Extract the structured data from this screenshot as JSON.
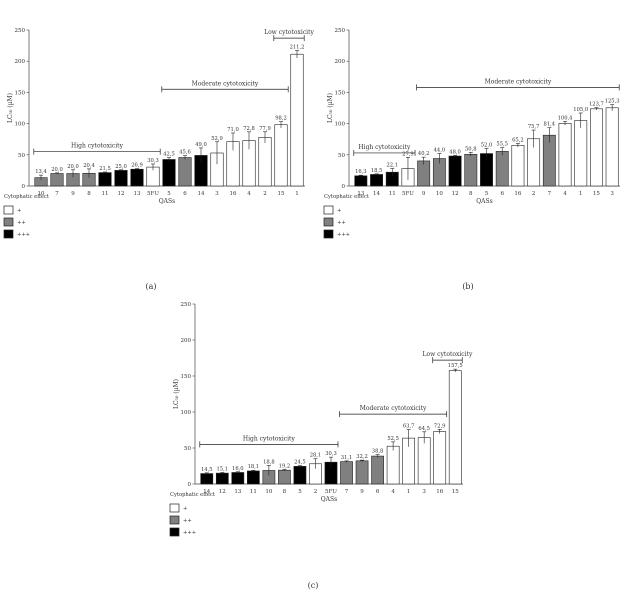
{
  "legend_colors": {
    "+": "#ffffff",
    "++": "#808080",
    "+++": "#000000"
  },
  "chart_data": [
    {
      "type": "bar",
      "panel_label": "(a)",
      "ylabel": "LC₅₀ (µM)",
      "xlabel": "QASs",
      "ylim": [
        0,
        250
      ],
      "yticks": [
        0,
        50,
        100,
        150,
        200,
        250
      ],
      "grid": false,
      "legend": {
        "title": "Cytophatic effect",
        "entries": [
          "+",
          "++",
          "+++"
        ],
        "placement": "below"
      },
      "categories": [
        "10",
        "7",
        "9",
        "8",
        "11",
        "12",
        "13",
        "5FU",
        "5",
        "6",
        "14",
        "3",
        "16",
        "4",
        "2",
        "15",
        "1"
      ],
      "values": [
        13.4,
        20.0,
        20.0,
        20.4,
        21.5,
        25.0,
        26.9,
        30.3,
        42.5,
        45.6,
        49.0,
        52.9,
        71.0,
        72.8,
        77.9,
        98.2,
        211.2
      ],
      "value_labels": [
        "13,4",
        "20,0",
        "20,0",
        "20,4",
        "21,5",
        "25,0",
        "26,9",
        "30,3",
        "42,5",
        "45,6",
        "49,0",
        "52,9",
        "71,0",
        "72,8",
        "77,9",
        "98,2",
        "211,2"
      ],
      "errors": [
        4,
        1,
        6,
        7,
        1,
        1,
        1,
        5,
        3,
        3,
        12,
        18,
        14,
        14,
        9,
        5,
        6
      ],
      "effect": [
        "++",
        "++",
        "++",
        "++",
        "+++",
        "+++",
        "+++",
        "+",
        "+++",
        "++",
        "+++",
        "+",
        "+",
        "+",
        "+",
        "+",
        "+"
      ],
      "annotations": [
        {
          "text": "High cytotoxicity",
          "from": 0,
          "to": 7,
          "y": 55
        },
        {
          "text": "Moderate cytotoxicity",
          "from": 8,
          "to": 15,
          "y": 155
        },
        {
          "text": "Low cytotoxicity",
          "from": 15,
          "to": 16,
          "y": 237
        }
      ]
    },
    {
      "type": "bar",
      "panel_label": "(b)",
      "ylabel": "LC₅₀ (µM)",
      "xlabel": "QASs",
      "ylim": [
        0,
        250
      ],
      "yticks": [
        0,
        50,
        100,
        150,
        200,
        250
      ],
      "grid": false,
      "legend": {
        "title": "Cytophatic effect",
        "entries": [
          "+",
          "++",
          "+++"
        ],
        "placement": "below"
      },
      "categories": [
        "13",
        "14",
        "11",
        "5FU",
        "9",
        "10",
        "12",
        "8",
        "5",
        "6",
        "16",
        "2",
        "7",
        "4",
        "1",
        "15",
        "3"
      ],
      "values": [
        16.3,
        18.5,
        22.1,
        27.9,
        40.2,
        44.0,
        48.0,
        50.8,
        52.0,
        55.5,
        65.2,
        75.7,
        81.4,
        100.4,
        105.0,
        123.7,
        125.3
      ],
      "value_labels": [
        "16,3",
        "18,5",
        "22,1",
        "27,9",
        "40,2",
        "44,0",
        "48,0",
        "50,8",
        "52,0",
        "55,5",
        "65,2",
        "75,7",
        "81,4",
        "100,4",
        "105,0",
        "123,7",
        "125,3"
      ],
      "errors": [
        1,
        1,
        6,
        18,
        6,
        8,
        1,
        3,
        8,
        6,
        3,
        14,
        12,
        3,
        12,
        2,
        5
      ],
      "effect": [
        "+++",
        "+++",
        "+++",
        "+",
        "++",
        "++",
        "+++",
        "++",
        "+++",
        "++",
        "+",
        "+",
        "++",
        "+",
        "+",
        "+",
        "+"
      ],
      "annotations": [
        {
          "text": "High cytotoxicity",
          "from": 0,
          "to": 3,
          "y": 53
        },
        {
          "text": "Moderate cytotoxicity",
          "from": 4,
          "to": 16,
          "y": 158
        }
      ]
    },
    {
      "type": "bar",
      "panel_label": "(c)",
      "ylabel": "LC₅₀ (µM)",
      "xlabel": "QASs",
      "ylim": [
        0,
        250
      ],
      "yticks": [
        0,
        50,
        100,
        150,
        200,
        250
      ],
      "grid": false,
      "legend": {
        "title": "Cytophatic effect",
        "entries": [
          "+",
          "++",
          "+++"
        ],
        "placement": "below"
      },
      "categories": [
        "14",
        "12",
        "13",
        "11",
        "10",
        "8",
        "5",
        "2",
        "5FU",
        "7",
        "9",
        "6",
        "4",
        "1",
        "3",
        "16",
        "15"
      ],
      "values": [
        14.5,
        15.1,
        16.0,
        18.1,
        18.8,
        19.2,
        24.5,
        28.1,
        30.3,
        31.1,
        32.2,
        38.8,
        52.5,
        63.7,
        64.5,
        72.9,
        157.5
      ],
      "value_labels": [
        "14,5",
        "15,1",
        "16,0",
        "18,1",
        "18,8",
        "19,2",
        "24,5",
        "28,1",
        "30,3",
        "31,1",
        "32,2",
        "38,8",
        "52,5",
        "63,7",
        "64,5",
        "72,9",
        "157,5"
      ],
      "errors": [
        1,
        1,
        1,
        1,
        7,
        1,
        1,
        7,
        7,
        1,
        1,
        2,
        6,
        12,
        8,
        3,
        2
      ],
      "effect": [
        "+++",
        "+++",
        "+++",
        "+++",
        "++",
        "++",
        "+++",
        "+",
        "+++",
        "++",
        "++",
        "++",
        "+",
        "+",
        "+",
        "+",
        "+"
      ],
      "annotations": [
        {
          "text": "High cytotoxicity",
          "from": 0,
          "to": 8,
          "y": 55
        },
        {
          "text": "Moderate cytotoxicity",
          "from": 9,
          "to": 15,
          "y": 97
        },
        {
          "text": "Low cytotoxicity",
          "from": 15,
          "to": 16,
          "y": 172
        }
      ]
    }
  ]
}
